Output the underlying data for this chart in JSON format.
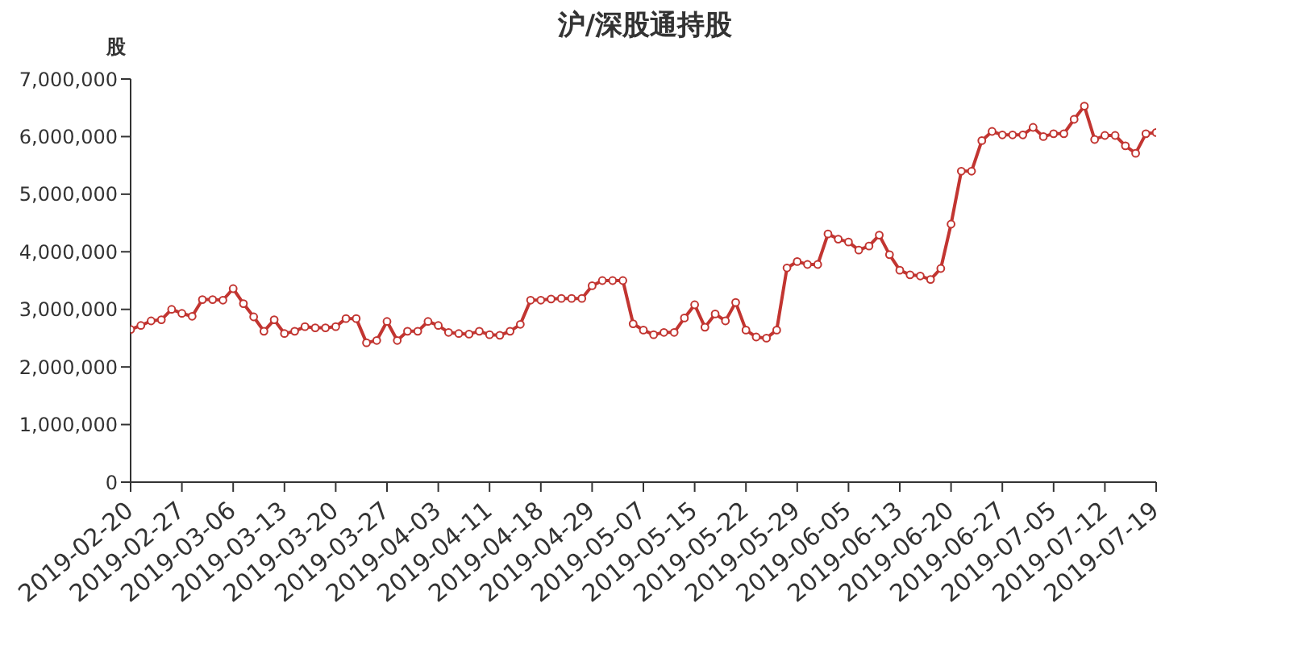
{
  "chart_data": {
    "type": "line",
    "title": "沪/深股通持股",
    "ylabel": "股",
    "categories": [
      "2019-02-20",
      null,
      null,
      null,
      null,
      "2019-02-27",
      null,
      null,
      null,
      null,
      "2019-03-06",
      null,
      null,
      null,
      null,
      "2019-03-13",
      null,
      null,
      null,
      null,
      "2019-03-20",
      null,
      null,
      null,
      null,
      "2019-03-27",
      null,
      null,
      null,
      null,
      "2019-04-03",
      null,
      null,
      null,
      null,
      "2019-04-11",
      null,
      null,
      null,
      null,
      "2019-04-18",
      null,
      null,
      null,
      null,
      "2019-04-29",
      null,
      null,
      null,
      null,
      "2019-05-07",
      null,
      null,
      null,
      null,
      "2019-05-15",
      null,
      null,
      null,
      null,
      "2019-05-22",
      null,
      null,
      null,
      null,
      "2019-05-29",
      null,
      null,
      null,
      null,
      "2019-06-05",
      null,
      null,
      null,
      null,
      "2019-06-13",
      null,
      null,
      null,
      null,
      "2019-06-20",
      null,
      null,
      null,
      null,
      "2019-06-27",
      null,
      null,
      null,
      null,
      "2019-07-05",
      null,
      null,
      null,
      null,
      "2019-07-12",
      null,
      null,
      null,
      null,
      "2019-07-19"
    ],
    "series": [
      {
        "color": "#c23531",
        "values": [
          2650000,
          2720000,
          2800000,
          2820000,
          3000000,
          2930000,
          2880000,
          3170000,
          3170000,
          3160000,
          3360000,
          3100000,
          2870000,
          2620000,
          2820000,
          2580000,
          2620000,
          2700000,
          2680000,
          2680000,
          2700000,
          2840000,
          2840000,
          2420000,
          2460000,
          2790000,
          2460000,
          2620000,
          2620000,
          2790000,
          2720000,
          2600000,
          2580000,
          2570000,
          2620000,
          2560000,
          2550000,
          2620000,
          2740000,
          3160000,
          3160000,
          3180000,
          3190000,
          3190000,
          3190000,
          3410000,
          3500000,
          3500000,
          3500000,
          2750000,
          2640000,
          2560000,
          2600000,
          2600000,
          2850000,
          3080000,
          2690000,
          2920000,
          2800000,
          3120000,
          2640000,
          2520000,
          2500000,
          2640000,
          3720000,
          3830000,
          3780000,
          3780000,
          4310000,
          4220000,
          4170000,
          4030000,
          4100000,
          4290000,
          3950000,
          3680000,
          3600000,
          3580000,
          3520000,
          3710000,
          4480000,
          5400000,
          5400000,
          5930000,
          6090000,
          6030000,
          6030000,
          6030000,
          6160000,
          6000000,
          6050000,
          6050000,
          6300000,
          6530000,
          5950000,
          6020000,
          6020000,
          5840000,
          5710000,
          6050000,
          6070000
        ]
      }
    ],
    "ylim": [
      0,
      7000000
    ],
    "yticks": [
      0,
      {
        "value": 1000000,
        "label": "1,000,000"
      },
      {
        "value": 2000000,
        "label": "2,000,000"
      },
      {
        "value": 3000000,
        "label": "3,000,000"
      },
      {
        "value": 4000000,
        "label": "4,000,000"
      },
      {
        "value": 5000000,
        "label": "5,000,000"
      },
      {
        "value": 6000000,
        "label": "6,000,000"
      },
      {
        "value": 7000000,
        "label": "7,000,000"
      }
    ],
    "grid": false,
    "legend": false,
    "marker": "circle",
    "line_style": "solid"
  }
}
